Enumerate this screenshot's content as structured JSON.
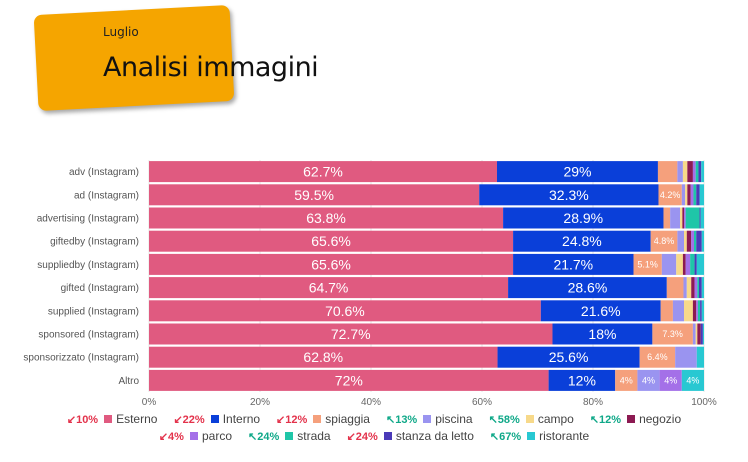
{
  "header": {
    "subtitle": "Luglio",
    "title": "Analisi immagini"
  },
  "chart_data": {
    "type": "bar",
    "orientation": "horizontal",
    "stacked": "percent",
    "xlim": [
      0,
      100
    ],
    "x_ticks": [
      "0%",
      "20%",
      "40%",
      "60%",
      "80%",
      "100%"
    ],
    "categories": [
      "adv (Instagram)",
      "ad (Instagram)",
      "advertising (Instagram)",
      "giftedby (Instagram)",
      "suppliedby (Instagram)",
      "gifted (Instagram)",
      "supplied (Instagram)",
      "sponsored (Instagram)",
      "sponsorizzato (Instagram)",
      "Altro"
    ],
    "series": [
      {
        "name": "Esterno",
        "color": "#e05a80",
        "delta": "10%",
        "trend": "down",
        "values": [
          62.7,
          59.5,
          63.8,
          65.6,
          65.6,
          64.7,
          70.6,
          72.7,
          62.8,
          72
        ],
        "labels": [
          "62.7%",
          "59.5%",
          "63.8%",
          "65.6%",
          "65.6%",
          "64.7%",
          "70.6%",
          "72.7%",
          "62.8%",
          "72%"
        ]
      },
      {
        "name": "Interno",
        "color": "#0a3fd9",
        "delta": "22%",
        "trend": "down",
        "values": [
          29,
          32.3,
          28.9,
          24.8,
          21.7,
          28.6,
          21.6,
          18,
          25.6,
          12
        ],
        "labels": [
          "29%",
          "32.3%",
          "28.9%",
          "24.8%",
          "21.7%",
          "28.6%",
          "21.6%",
          "18%",
          "25.6%",
          "12%"
        ]
      },
      {
        "name": "spiaggia",
        "color": "#f5a07c",
        "delta": "12%",
        "trend": "down",
        "values": [
          3.5,
          4.2,
          1.2,
          4.8,
          5.1,
          3.0,
          2.2,
          7.3,
          6.4,
          4
        ],
        "labels": [
          "",
          "4.2%",
          "",
          "4.8%",
          "5.1%",
          "",
          "",
          "7.3%",
          "6.4%",
          "4%"
        ]
      },
      {
        "name": "piscina",
        "color": "#9a94f0",
        "delta": "13%",
        "trend": "up",
        "values": [
          1.0,
          0.6,
          1.8,
          1.2,
          2.6,
          0.6,
          2.0,
          0.5,
          3.9,
          4
        ],
        "labels": [
          "",
          "",
          "",
          "",
          "",
          "",
          "",
          "",
          "",
          "4%"
        ]
      },
      {
        "name": "campo",
        "color": "#f7d98a",
        "delta": "58%",
        "trend": "up",
        "values": [
          0.8,
          0.4,
          0.4,
          0.5,
          1.2,
          0.8,
          1.6,
          0.3,
          0,
          0
        ],
        "labels": [
          "",
          "",
          "",
          "",
          "",
          "",
          "",
          "",
          "",
          ""
        ]
      },
      {
        "name": "negozio",
        "color": "#8c1a52",
        "delta": "12%",
        "trend": "up",
        "values": [
          1.0,
          0.6,
          0.3,
          0.8,
          0.5,
          0.6,
          0.6,
          0.6,
          0,
          0
        ],
        "labels": [
          "",
          "",
          "",
          "",
          "",
          "",
          "",
          "",
          "",
          ""
        ]
      },
      {
        "name": "parco",
        "color": "#a470e8",
        "delta": "4%",
        "trend": "down",
        "values": [
          0.5,
          0.5,
          0.3,
          0.5,
          0.8,
          0.5,
          0.3,
          0,
          0,
          4
        ],
        "labels": [
          "",
          "",
          "",
          "",
          "",
          "",
          "",
          "",
          "",
          "4%"
        ]
      },
      {
        "name": "strada",
        "color": "#1fc6a8",
        "delta": "24%",
        "trend": "up",
        "values": [
          0.5,
          0.5,
          2.5,
          0.4,
          0.8,
          0.3,
          0.4,
          0,
          0,
          0
        ],
        "labels": [
          "",
          "",
          "",
          "",
          "",
          "",
          "",
          "",
          "",
          ""
        ]
      },
      {
        "name": "stanza da letto",
        "color": "#4a3ab8",
        "delta": "24%",
        "trend": "down",
        "values": [
          0.5,
          0.6,
          0.2,
          1.0,
          0.4,
          0.5,
          0.3,
          0.4,
          0,
          0
        ],
        "labels": [
          "",
          "",
          "",
          "",
          "",
          "",
          "",
          "",
          "",
          ""
        ]
      },
      {
        "name": "ristorante",
        "color": "#28c8d2",
        "delta": "67%",
        "trend": "up",
        "values": [
          0.5,
          0.8,
          0.6,
          0.4,
          1.3,
          0.4,
          0.4,
          0.2,
          1.3,
          4
        ],
        "labels": [
          "",
          "",
          "",
          "",
          "",
          "",
          "",
          "",
          "",
          "4%"
        ]
      }
    ],
    "legend_position": "bottom"
  }
}
